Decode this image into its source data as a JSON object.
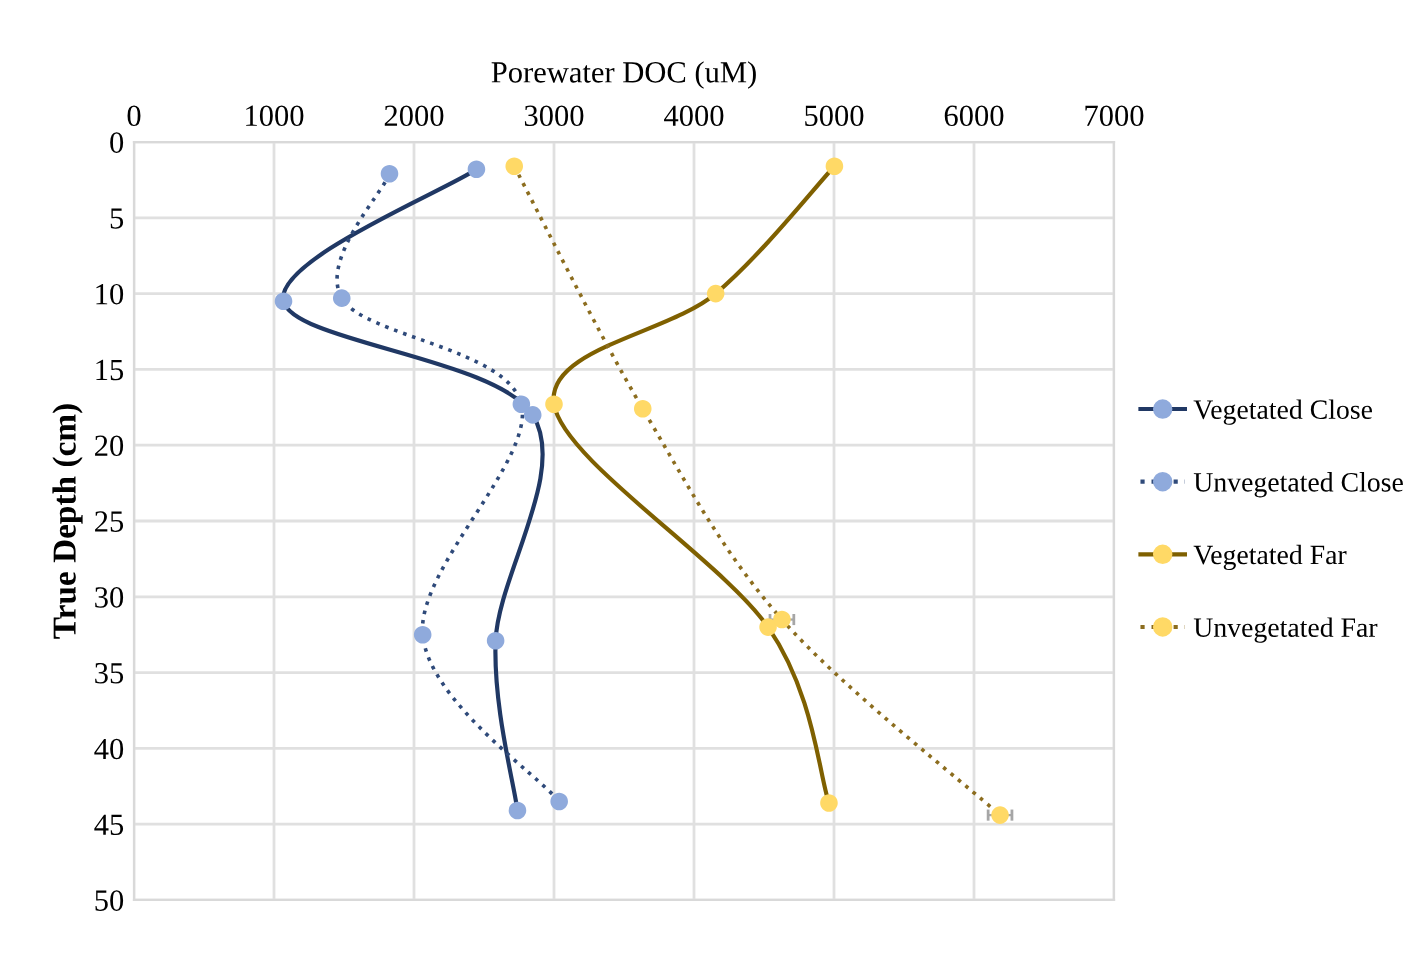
{
  "chart_data": {
    "type": "line",
    "xlabel": "Porewater DOC (uM)",
    "ylabel": "True Depth (cm)",
    "xlim": [
      0,
      7000
    ],
    "xticks": [
      0,
      1000,
      2000,
      3000,
      4000,
      5000,
      6000,
      7000
    ],
    "ylim": [
      50,
      0
    ],
    "yticks": [
      0,
      5,
      10,
      15,
      20,
      25,
      30,
      35,
      40,
      45,
      50
    ],
    "grid": true,
    "legend": "right",
    "marker": "circle",
    "series": [
      {
        "name": "Vegetated Close",
        "color": "#203864",
        "line_style": "solid",
        "colors": [
          "#8faadc",
          "#8faadc",
          "#8faadc",
          "#8faadc",
          "#8faadc"
        ],
        "x": [
          2446,
          1068,
          2848,
          2583,
          2739
        ],
        "values": [
          1.8,
          10.5,
          18.0,
          32.9,
          44.1
        ]
      },
      {
        "name": "Unvegetated Close",
        "color": "#2f4a7a",
        "line_style": "dotted",
        "colors": [
          "#8faadc",
          "#8faadc",
          "#8faadc",
          "#8faadc",
          "#8faadc"
        ],
        "x": [
          1825,
          1484,
          2767,
          2062,
          3037
        ],
        "values": [
          2.1,
          10.3,
          17.3,
          32.5,
          43.5
        ]
      },
      {
        "name": "Vegetated Far",
        "color": "#7f6000",
        "line_style": "solid",
        "colors": [
          "#ffd966",
          "#ffd966",
          "#ffd966",
          "#ffd966",
          "#ffd966"
        ],
        "x": [
          5003,
          4155,
          3000,
          4529,
          4964
        ],
        "values": [
          1.6,
          10.0,
          17.3,
          32.0,
          43.6
        ]
      },
      {
        "name": "Unvegetated Far",
        "color": "#8c6d1f",
        "line_style": "dotted",
        "colors": [
          "#ffd966",
          "#ffd966",
          "#ffd966",
          "#ffd966"
        ],
        "x": [
          2716,
          3634,
          4628,
          6186
        ],
        "values": [
          1.6,
          17.6,
          31.5,
          44.4
        ],
        "xerrors": [
          null,
          null,
          85,
          85
        ]
      }
    ]
  }
}
